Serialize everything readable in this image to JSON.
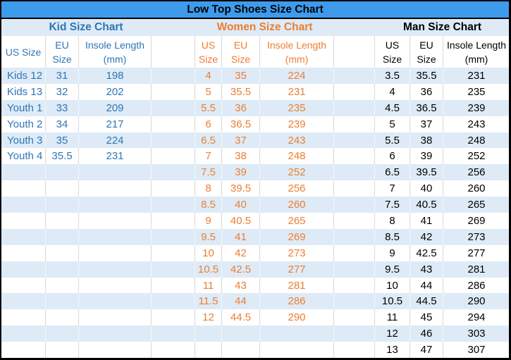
{
  "title": "Low Top Shoes Size Chart",
  "colors": {
    "title_bar_bg": "#3E9BEC",
    "band_row_bg": "#DEEBF7",
    "kid_text": "#2E75B6",
    "women_text": "#ED7D31",
    "man_text": "#000000",
    "cell_border": "#D8D8D8",
    "outer_border": "#000000"
  },
  "chart_data": [
    {
      "type": "table",
      "title": "Kid Size Chart",
      "columns": [
        "US Size",
        "EU Size",
        "Insole Length (mm)"
      ],
      "column_lines": [
        [
          "US Size"
        ],
        [
          "EU",
          "Size"
        ],
        [
          "Insole Length",
          "(mm)"
        ]
      ],
      "rows": [
        [
          "Kids 12",
          "31",
          "198"
        ],
        [
          "Kids 13",
          "32",
          "202"
        ],
        [
          "Youth 1",
          "33",
          "209"
        ],
        [
          "Youth 2",
          "34",
          "217"
        ],
        [
          "Youth 3",
          "35",
          "224"
        ],
        [
          "Youth 4",
          "35.5",
          "231"
        ]
      ]
    },
    {
      "type": "table",
      "title": "Women Size Chart",
      "columns": [
        "US Size",
        "EU Size",
        "Insole Length (mm)"
      ],
      "column_lines": [
        [
          "US",
          "Size"
        ],
        [
          "EU",
          "Size"
        ],
        [
          "Insole Length",
          "(mm)"
        ]
      ],
      "rows": [
        [
          "4",
          "35",
          "224"
        ],
        [
          "5",
          "35.5",
          "231"
        ],
        [
          "5.5",
          "36",
          "235"
        ],
        [
          "6",
          "36.5",
          "239"
        ],
        [
          "6.5",
          "37",
          "243"
        ],
        [
          "7",
          "38",
          "248"
        ],
        [
          "7.5",
          "39",
          "252"
        ],
        [
          "8",
          "39.5",
          "256"
        ],
        [
          "8.5",
          "40",
          "260"
        ],
        [
          "9",
          "40.5",
          "265"
        ],
        [
          "9.5",
          "41",
          "269"
        ],
        [
          "10",
          "42",
          "273"
        ],
        [
          "10.5",
          "42.5",
          "277"
        ],
        [
          "11",
          "43",
          "281"
        ],
        [
          "11.5",
          "44",
          "286"
        ],
        [
          "12",
          "44.5",
          "290"
        ]
      ]
    },
    {
      "type": "table",
      "title": "Man Size Chart",
      "columns": [
        "US Size",
        "EU Size",
        "Insole Length (mm)"
      ],
      "column_lines": [
        [
          "US",
          "Size"
        ],
        [
          "EU",
          "Size"
        ],
        [
          "Insole Length",
          "(mm)"
        ]
      ],
      "rows": [
        [
          "3.5",
          "35.5",
          "231"
        ],
        [
          "4",
          "36",
          "235"
        ],
        [
          "4.5",
          "36.5",
          "239"
        ],
        [
          "5",
          "37",
          "243"
        ],
        [
          "5.5",
          "38",
          "248"
        ],
        [
          "6",
          "39",
          "252"
        ],
        [
          "6.5",
          "39.5",
          "256"
        ],
        [
          "7",
          "40",
          "260"
        ],
        [
          "7.5",
          "40.5",
          "265"
        ],
        [
          "8",
          "41",
          "269"
        ],
        [
          "8.5",
          "42",
          "273"
        ],
        [
          "9",
          "42.5",
          "277"
        ],
        [
          "9.5",
          "43",
          "281"
        ],
        [
          "10",
          "44",
          "286"
        ],
        [
          "10.5",
          "44.5",
          "290"
        ],
        [
          "11",
          "45",
          "294"
        ],
        [
          "12",
          "46",
          "303"
        ],
        [
          "13",
          "47",
          "307"
        ]
      ]
    }
  ]
}
